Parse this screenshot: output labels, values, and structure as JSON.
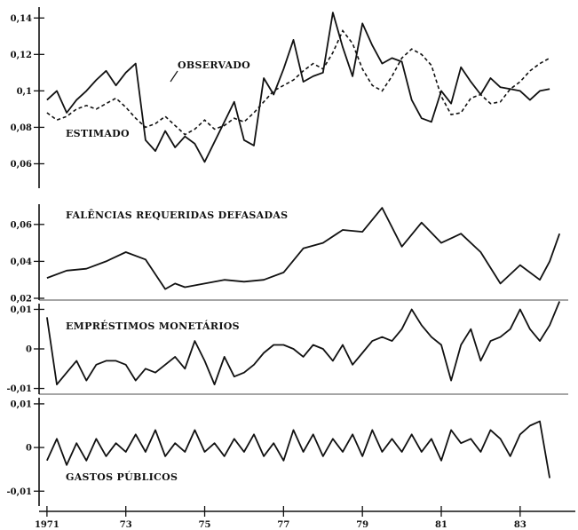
{
  "chart_data": [
    {
      "type": "line",
      "ylim": [
        0.05,
        0.145
      ],
      "yticks": [
        "0,06",
        "0,08",
        "0,1",
        "0,12",
        "0,14"
      ],
      "annotations": [
        "OBSERVADO",
        "ESTIMADO"
      ],
      "series": [
        {
          "name": "OBSERVADO",
          "style": "solid",
          "x": [
            1971.0,
            1971.25,
            1971.5,
            1971.75,
            1972.0,
            1972.25,
            1972.5,
            1972.75,
            1973.0,
            1973.25,
            1973.5,
            1973.75,
            1974.0,
            1974.25,
            1974.5,
            1974.75,
            1975.0,
            1975.25,
            1975.5,
            1975.75,
            1976.0,
            1976.25,
            1976.5,
            1976.75,
            1977.0,
            1977.25,
            1977.5,
            1977.75,
            1978.0,
            1978.25,
            1978.5,
            1978.75,
            1979.0,
            1979.25,
            1979.5,
            1979.75,
            1980.0,
            1980.25,
            1980.5,
            1980.75,
            1981.0,
            1981.25,
            1981.5,
            1981.75,
            1982.0,
            1982.25,
            1982.5,
            1982.75,
            1983.0,
            1983.25,
            1983.5,
            1983.75
          ],
          "values": [
            0.095,
            0.1,
            0.088,
            0.095,
            0.1,
            0.106,
            0.111,
            0.103,
            0.11,
            0.115,
            0.073,
            0.067,
            0.078,
            0.069,
            0.075,
            0.071,
            0.061,
            0.072,
            0.083,
            0.094,
            0.073,
            0.07,
            0.107,
            0.098,
            0.112,
            0.128,
            0.105,
            0.108,
            0.11,
            0.143,
            0.124,
            0.108,
            0.137,
            0.125,
            0.115,
            0.118,
            0.116,
            0.095,
            0.085,
            0.083,
            0.1,
            0.093,
            0.113,
            0.105,
            0.098,
            0.107,
            0.102,
            0.101,
            0.1,
            0.095,
            0.1,
            0.101
          ]
        },
        {
          "name": "ESTIMADO",
          "style": "dashed",
          "x": [
            1971.0,
            1971.25,
            1971.5,
            1971.75,
            1972.0,
            1972.25,
            1972.5,
            1972.75,
            1973.0,
            1973.25,
            1973.5,
            1973.75,
            1974.0,
            1974.25,
            1974.5,
            1974.75,
            1975.0,
            1975.25,
            1975.5,
            1975.75,
            1976.0,
            1976.25,
            1976.5,
            1976.75,
            1977.0,
            1977.25,
            1977.5,
            1977.75,
            1978.0,
            1978.25,
            1978.5,
            1978.75,
            1979.0,
            1979.25,
            1979.5,
            1979.75,
            1980.0,
            1980.25,
            1980.5,
            1980.75,
            1981.0,
            1981.25,
            1981.5,
            1981.75,
            1982.0,
            1982.25,
            1982.5,
            1982.75,
            1983.0,
            1983.25,
            1983.5,
            1983.75
          ],
          "values": [
            0.088,
            0.084,
            0.086,
            0.09,
            0.092,
            0.09,
            0.093,
            0.096,
            0.091,
            0.085,
            0.08,
            0.082,
            0.086,
            0.081,
            0.076,
            0.079,
            0.084,
            0.079,
            0.081,
            0.085,
            0.083,
            0.088,
            0.094,
            0.1,
            0.103,
            0.106,
            0.111,
            0.115,
            0.112,
            0.121,
            0.133,
            0.126,
            0.112,
            0.103,
            0.1,
            0.108,
            0.118,
            0.123,
            0.12,
            0.114,
            0.097,
            0.087,
            0.088,
            0.096,
            0.098,
            0.093,
            0.094,
            0.101,
            0.105,
            0.111,
            0.115,
            0.118
          ]
        }
      ]
    },
    {
      "type": "line",
      "title": "FALÊNCIAS REQUERIDAS DEFASADAS",
      "ylim": [
        0.02,
        0.07
      ],
      "yticks": [
        "0,02",
        "0,04",
        "0,06"
      ],
      "series": [
        {
          "style": "solid",
          "x": [
            1971.0,
            1971.5,
            1972.0,
            1972.5,
            1973.0,
            1973.5,
            1974.0,
            1974.25,
            1974.5,
            1975.0,
            1975.5,
            1976.0,
            1976.5,
            1977.0,
            1977.5,
            1978.0,
            1978.5,
            1979.0,
            1979.5,
            1980.0,
            1980.5,
            1981.0,
            1981.5,
            1982.0,
            1982.5,
            1983.0,
            1983.5,
            1983.75,
            1984.0
          ],
          "values": [
            0.031,
            0.035,
            0.036,
            0.04,
            0.045,
            0.041,
            0.025,
            0.028,
            0.026,
            0.028,
            0.03,
            0.029,
            0.03,
            0.034,
            0.047,
            0.05,
            0.057,
            0.056,
            0.069,
            0.048,
            0.061,
            0.05,
            0.055,
            0.045,
            0.028,
            0.038,
            0.03,
            0.04,
            0.055
          ]
        }
      ]
    },
    {
      "type": "line",
      "title": "EMPRÉSTIMOS MONETÁRIOS",
      "ylim": [
        -0.011,
        0.011
      ],
      "yticks": [
        "-0,01",
        "0",
        "0,01"
      ],
      "series": [
        {
          "style": "solid",
          "x": [
            1971.0,
            1971.25,
            1971.5,
            1971.75,
            1972.0,
            1972.25,
            1972.5,
            1972.75,
            1973.0,
            1973.25,
            1973.5,
            1973.75,
            1974.0,
            1974.25,
            1974.5,
            1974.75,
            1975.0,
            1975.25,
            1975.5,
            1975.75,
            1976.0,
            1976.25,
            1976.5,
            1976.75,
            1977.0,
            1977.25,
            1977.5,
            1977.75,
            1978.0,
            1978.25,
            1978.5,
            1978.75,
            1979.0,
            1979.25,
            1979.5,
            1979.75,
            1980.0,
            1980.25,
            1980.5,
            1980.75,
            1981.0,
            1981.25,
            1981.5,
            1981.75,
            1982.0,
            1982.25,
            1982.5,
            1982.75,
            1983.0,
            1983.25,
            1983.5,
            1983.75,
            1984.0
          ],
          "values": [
            0.008,
            -0.009,
            -0.006,
            -0.003,
            -0.008,
            -0.004,
            -0.003,
            -0.003,
            -0.004,
            -0.008,
            -0.005,
            -0.006,
            -0.004,
            -0.002,
            -0.005,
            0.002,
            -0.003,
            -0.009,
            -0.002,
            -0.007,
            -0.006,
            -0.004,
            -0.001,
            0.001,
            0.001,
            0.0,
            -0.002,
            0.001,
            0.0,
            -0.003,
            0.001,
            -0.004,
            -0.001,
            0.002,
            0.003,
            0.002,
            0.005,
            0.01,
            0.006,
            0.003,
            0.001,
            -0.008,
            0.001,
            0.005,
            -0.003,
            0.002,
            0.003,
            0.005,
            0.01,
            0.005,
            0.002,
            0.006,
            0.012
          ]
        }
      ]
    },
    {
      "type": "line",
      "title": "GASTOS PÚBLICOS",
      "ylim": [
        -0.013,
        0.011
      ],
      "yticks": [
        "-0,01",
        "0",
        "0,01"
      ],
      "series": [
        {
          "style": "solid",
          "x": [
            1971.0,
            1971.25,
            1971.5,
            1971.75,
            1972.0,
            1972.25,
            1972.5,
            1972.75,
            1973.0,
            1973.25,
            1973.5,
            1973.75,
            1974.0,
            1974.25,
            1974.5,
            1974.75,
            1975.0,
            1975.25,
            1975.5,
            1975.75,
            1976.0,
            1976.25,
            1976.5,
            1976.75,
            1977.0,
            1977.25,
            1977.5,
            1977.75,
            1978.0,
            1978.25,
            1978.5,
            1978.75,
            1979.0,
            1979.25,
            1979.5,
            1979.75,
            1980.0,
            1980.25,
            1980.5,
            1980.75,
            1981.0,
            1981.25,
            1981.5,
            1981.75,
            1982.0,
            1982.25,
            1982.5,
            1982.75,
            1983.0,
            1983.25,
            1983.5,
            1983.75
          ],
          "values": [
            -0.003,
            0.002,
            -0.004,
            0.001,
            -0.003,
            0.002,
            -0.002,
            0.001,
            -0.001,
            0.003,
            -0.001,
            0.004,
            -0.002,
            0.001,
            -0.001,
            0.004,
            -0.001,
            0.001,
            -0.002,
            0.002,
            -0.001,
            0.003,
            -0.002,
            0.001,
            -0.003,
            0.004,
            -0.001,
            0.003,
            -0.002,
            0.002,
            -0.001,
            0.003,
            -0.002,
            0.004,
            -0.001,
            0.002,
            -0.001,
            0.003,
            -0.001,
            0.002,
            -0.003,
            0.004,
            0.001,
            0.002,
            -0.001,
            0.004,
            0.002,
            -0.002,
            0.003,
            0.005,
            0.006,
            -0.007
          ]
        }
      ]
    },
    {
      "type": "x-axis",
      "xlim": [
        1970.8,
        1984.4
      ],
      "xticks": [
        {
          "label": "1971",
          "value": 1971
        },
        {
          "label": "73",
          "value": 1973
        },
        {
          "label": "75",
          "value": 1975
        },
        {
          "label": "77",
          "value": 1977
        },
        {
          "label": "79",
          "value": 1979
        },
        {
          "label": "81",
          "value": 1981
        },
        {
          "label": "83",
          "value": 1983
        }
      ]
    }
  ]
}
